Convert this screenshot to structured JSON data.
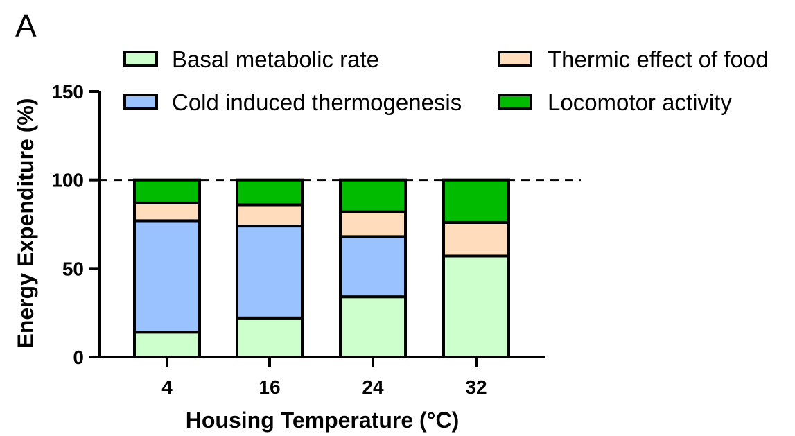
{
  "panel_label": "A",
  "colors": {
    "basal": "#ccffcc",
    "cold": "#99c2ff",
    "thermic": "#ffdcbb",
    "locomotor": "#00bb00",
    "outline": "#000000"
  },
  "chart_data": {
    "type": "bar",
    "stacked": true,
    "title": "",
    "xlabel": "Housing Temperature (°C)",
    "ylabel": "Energy Expenditure (%)",
    "categories": [
      "4",
      "16",
      "24",
      "32"
    ],
    "ylim": [
      0,
      150
    ],
    "yticks": [
      0,
      50,
      100,
      150
    ],
    "reference_line": {
      "y": 100,
      "style": "dashed"
    },
    "legend_position": "top",
    "series": [
      {
        "name": "Basal metabolic rate",
        "color_key": "basal",
        "values": [
          14,
          22,
          34,
          57
        ]
      },
      {
        "name": "Cold induced thermogenesis",
        "color_key": "cold",
        "values": [
          63,
          52,
          34,
          0
        ]
      },
      {
        "name": "Thermic effect of food",
        "color_key": "thermic",
        "values": [
          10,
          12,
          14,
          19
        ]
      },
      {
        "name": "Locomotor activity",
        "color_key": "locomotor",
        "values": [
          13,
          14,
          18,
          24
        ]
      }
    ],
    "legend_order": [
      "Basal metabolic rate",
      "Thermic effect of food",
      "Cold induced thermogenesis",
      "Locomotor activity"
    ]
  }
}
